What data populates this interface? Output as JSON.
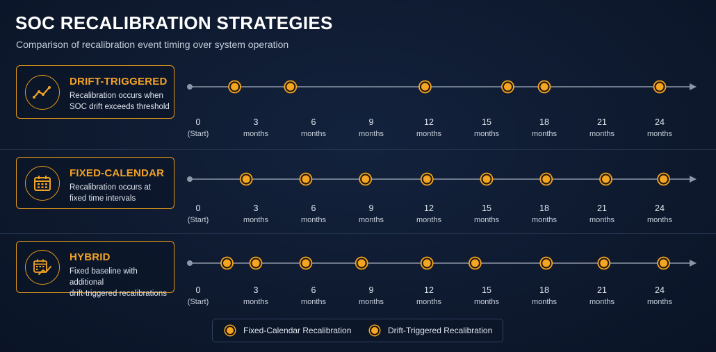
{
  "title": "SOC RECALIBRATION STRATEGIES",
  "subtitle": "Comparison of recalibration event timing over system operation",
  "axis": {
    "ticks": [
      {
        "top": "0",
        "bottom": "(Start)"
      },
      {
        "top": "3",
        "bottom": "months"
      },
      {
        "top": "6",
        "bottom": "months"
      },
      {
        "top": "9",
        "bottom": "months"
      },
      {
        "top": "12",
        "bottom": "months"
      },
      {
        "top": "15",
        "bottom": "months"
      },
      {
        "top": "18",
        "bottom": "months"
      },
      {
        "top": "21",
        "bottom": "months"
      },
      {
        "top": "24",
        "bottom": "months"
      }
    ],
    "x_range_months": [
      0,
      24
    ]
  },
  "strategies": [
    {
      "name": "DRIFT-TRIGGERED",
      "description_line1": "Recalibration occurs when",
      "description_line2": "SOC drift exceeds threshold",
      "icon": "trend-line-icon",
      "events_months": [
        1.9,
        4.8,
        11.8,
        16.1,
        18.0,
        24.0
      ]
    },
    {
      "name": "FIXED-CALENDAR",
      "description_line1": "Recalibration occurs at",
      "description_line2": "fixed time intervals",
      "icon": "calendar-icon",
      "events_months": [
        2.5,
        5.6,
        8.7,
        11.9,
        15.0,
        18.1,
        21.2,
        24.2
      ]
    },
    {
      "name": "HYBRID",
      "description_line1": "Fixed baseline with additional",
      "description_line2": "drift-triggered recalibrations",
      "icon": "calendar-trend-icon",
      "events_months": [
        1.5,
        3.0,
        5.6,
        8.5,
        11.9,
        14.4,
        18.1,
        21.1,
        24.2
      ]
    }
  ],
  "legend": [
    {
      "label": "Fixed-Calendar Recalibration"
    },
    {
      "label": "Drift-Triggered Recalibration"
    }
  ],
  "colors": {
    "accent": "#f2a227",
    "marker_fill": "#f4a623",
    "axis_line": "#8d97a8",
    "background": "#0d182c"
  }
}
